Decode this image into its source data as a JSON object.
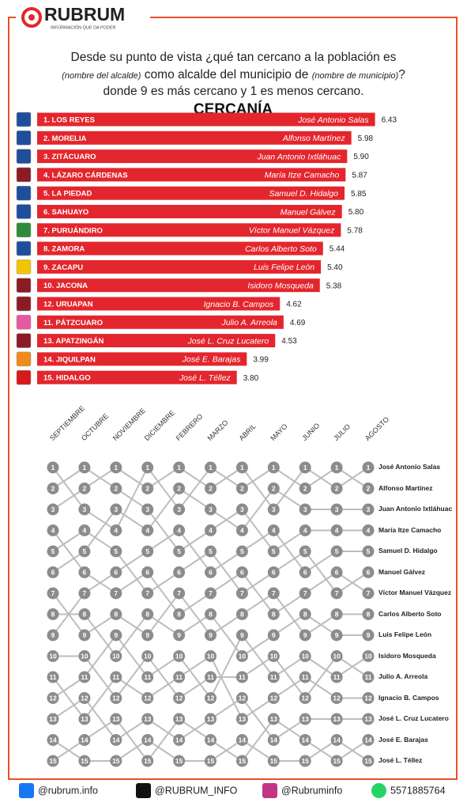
{
  "header": {
    "brand": "RUBRUM",
    "tagline": "INFORMACIÓN QUE DA PODER"
  },
  "question": {
    "line1": "Desde su punto de vista ¿qué tan cercano a la población es",
    "alcalde": "(nombre del alcalde)",
    "line2": "como alcalde del municipio de",
    "municipio": "(nombre de municipio)",
    "end": "?",
    "line3": "donde 9 es más cercano y 1 es menos cercano."
  },
  "chart_data": [
    {
      "type": "bar",
      "orientation": "horizontal",
      "title": "CERCANÍA",
      "categories": [
        "1. LOS REYES",
        "2. MORELIA",
        "3. ZITÁCUARO",
        "4. LÁZARO CÁRDENAS",
        "5. LA PIEDAD",
        "6. SAHUAYO",
        "7. PURUÁNDIRO",
        "8. ZAMORA",
        "9. ZACAPU",
        "10. JACONA",
        "12. URUAPAN",
        "11. PÁTZCUARO",
        "13. APATZINGÁN",
        "14. JIQUILPAN",
        "15. HIDALGO"
      ],
      "names": [
        "José Antonio Salas",
        "Alfonso Martínez",
        "Juan Antonio Ixtláhuac",
        "María Itze Camacho",
        "Samuel D. Hidalgo",
        "Manuel Gálvez",
        "Víctor Manuel Vázquez",
        "Carlos Alberto Soto",
        "Luis Felipe León",
        "Isidoro Mosqueda",
        "Ignacio B. Campos",
        "Julio A. Arreola",
        "José L. Cruz Lucatero",
        "José E. Barajas",
        "José L. Téllez"
      ],
      "values": [
        6.43,
        5.98,
        5.9,
        5.87,
        5.85,
        5.8,
        5.78,
        5.44,
        5.4,
        5.38,
        4.62,
        4.69,
        4.53,
        3.99,
        3.8
      ],
      "value_labels": [
        "6.43",
        "5.98",
        "5.90",
        "5.87",
        "5.85",
        "5.80",
        "5.78",
        "5.44",
        "5.40",
        "5.38",
        "4.62",
        "4.69",
        "4.53",
        "3.99",
        "3.80"
      ],
      "color": "#e3262d",
      "icon_colors": [
        "#1f4e9c",
        "#1f4e9c",
        "#1f4e9c",
        "#8b1c24",
        "#1f4e9c",
        "#1f4e9c",
        "#2e8b3a",
        "#1f4e9c",
        "#f2c500",
        "#8b1c24",
        "#8b1c24",
        "#e65aa0",
        "#8b1c24",
        "#f08a1c",
        "#d7191c"
      ],
      "xlim": [
        0,
        8
      ]
    },
    {
      "type": "bump",
      "categories": [
        "SEPTIEMBRE",
        "OCTUBRE",
        "NOVIEMBRE",
        "DICIEMBRE",
        "FEBRERO",
        "MARZO",
        "ABRIL",
        "MAYO",
        "JUNIO",
        "JULIO",
        "AGOSTO"
      ],
      "ylim": [
        1,
        15
      ],
      "reversed": true,
      "color": "#8c8c8c",
      "line_color": "#bdbdbd",
      "series": [
        {
          "name": "José Antonio Salas",
          "values": [
            3,
            2,
            1,
            2,
            1,
            2,
            1,
            3,
            1,
            2,
            1
          ]
        },
        {
          "name": "Alfonso Martínez",
          "values": [
            1,
            3,
            4,
            1,
            3,
            1,
            2,
            1,
            2,
            1,
            2
          ]
        },
        {
          "name": "Juan Antonio Ixtláhuac",
          "values": [
            6,
            5,
            3,
            4,
            2,
            3,
            4,
            2,
            3,
            3,
            3
          ]
        },
        {
          "name": "María Itze Camacho",
          "values": [
            2,
            1,
            2,
            3,
            5,
            4,
            3,
            5,
            4,
            4,
            4
          ]
        },
        {
          "name": "Samuel D. Hidalgo",
          "values": [
            9,
            7,
            6,
            5,
            4,
            6,
            5,
            4,
            6,
            5,
            5
          ]
        },
        {
          "name": "Manuel Gálvez",
          "values": [
            5,
            4,
            5,
            7,
            6,
            5,
            7,
            6,
            5,
            7,
            6
          ]
        },
        {
          "name": "Víctor Manuel Vázquez",
          "values": [
            4,
            6,
            7,
            6,
            8,
            7,
            6,
            8,
            7,
            6,
            7
          ]
        },
        {
          "name": "Carlos Alberto Soto",
          "values": [
            7,
            9,
            8,
            9,
            7,
            9,
            8,
            7,
            9,
            8,
            8
          ]
        },
        {
          "name": "Luis Felipe León",
          "values": [
            8,
            8,
            10,
            8,
            9,
            8,
            10,
            9,
            8,
            9,
            9
          ]
        },
        {
          "name": "Isidoro Mosqueda",
          "values": [
            12,
            11,
            9,
            11,
            10,
            12,
            9,
            11,
            10,
            11,
            10
          ]
        },
        {
          "name": "Julio A. Arreola",
          "values": [
            10,
            10,
            12,
            10,
            12,
            11,
            11,
            10,
            12,
            10,
            11
          ]
        },
        {
          "name": "Ignacio B. Campos",
          "values": [
            11,
            13,
            11,
            12,
            11,
            10,
            13,
            12,
            11,
            12,
            12
          ]
        },
        {
          "name": "José L. Cruz Lucatero",
          "values": [
            13,
            12,
            14,
            13,
            14,
            13,
            12,
            14,
            13,
            13,
            13
          ]
        },
        {
          "name": "José E. Barajas",
          "values": [
            15,
            14,
            13,
            15,
            13,
            14,
            15,
            13,
            14,
            15,
            14
          ]
        },
        {
          "name": "José L. Téllez",
          "values": [
            14,
            15,
            15,
            14,
            15,
            15,
            14,
            15,
            15,
            14,
            15
          ]
        }
      ]
    }
  ],
  "footer": {
    "facebook": "@rubrum.info",
    "x": "@RUBRUM_INFO",
    "instagram": "@Rubruminfo",
    "whatsapp": "5571885764"
  }
}
